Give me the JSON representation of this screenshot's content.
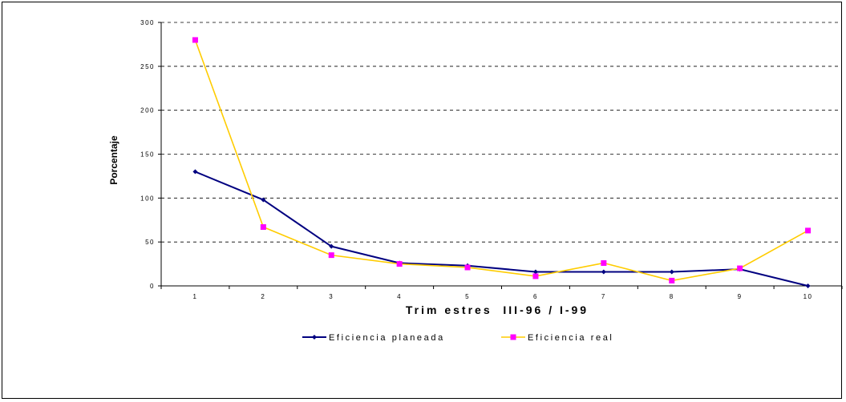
{
  "chart_data": {
    "type": "line",
    "title": "",
    "xlabel": "Trim estres  III-96 / I-99",
    "ylabel": "Porcentaje",
    "x": [
      1,
      2,
      3,
      4,
      5,
      6,
      7,
      8,
      9,
      10
    ],
    "x_tick_labels": [
      "1",
      "2",
      "3",
      "4",
      "5",
      "6",
      "7",
      "8",
      "9",
      "10"
    ],
    "y_tick_labels": [
      "0",
      "50",
      "100",
      "150",
      "200",
      "250",
      "300"
    ],
    "ylim": [
      0,
      300
    ],
    "y_ticks": [
      0,
      50,
      100,
      150,
      200,
      250,
      300
    ],
    "grid": true,
    "legend_position": "bottom",
    "series": [
      {
        "name": "Eficiencia planeada",
        "color": "#000080",
        "marker": "diamond",
        "values": [
          130,
          98,
          45,
          26,
          23,
          16,
          16,
          16,
          19,
          0
        ]
      },
      {
        "name": "Eficiencia real",
        "color": "#FFCC00",
        "marker_color": "#FF00FF",
        "marker": "square",
        "values": [
          280,
          67,
          35,
          25,
          21,
          11,
          26,
          6,
          20,
          63
        ]
      }
    ]
  }
}
